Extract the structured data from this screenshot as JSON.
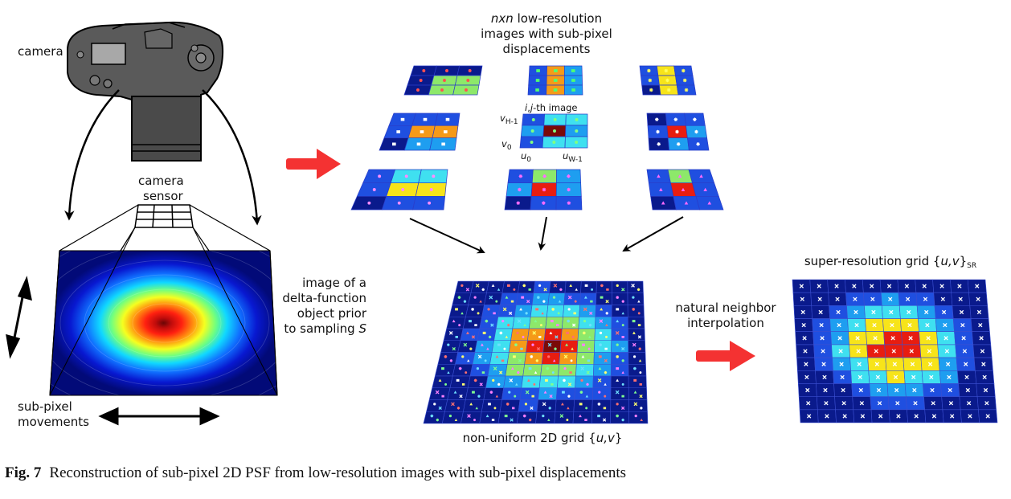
{
  "labels": {
    "camera": "camera",
    "camera_sensor_1": "camera",
    "camera_sensor_2": "sensor",
    "delta_1": "image of a",
    "delta_2": "delta-function",
    "delta_3": "object prior",
    "delta_4": "to sampling",
    "delta_4_var": "S",
    "subpixel_1": "sub-pixel",
    "subpixel_2": "movements",
    "lowres_1_var": "nxn",
    "lowres_1_rest": " low-resolution",
    "lowres_2": "images with sub-pixel",
    "lowres_3": "displacements",
    "ij_i": "i",
    "ij_j": "j",
    "ij_rest": "-th image",
    "v_h1": "v",
    "v_h1_sub": "H-1",
    "v_0": "v",
    "v_0_sub": "0",
    "u_0": "u",
    "u_0_sub": "0",
    "u_w1": "u",
    "u_w1_sub": "W-1",
    "nonuniform_pre": "non-uniform 2D grid {",
    "nonuniform_var": "u,v",
    "nonuniform_post": "}",
    "natural_1": "natural neighbor",
    "natural_2": "interpolation",
    "sr_pre": "super-resolution grid {",
    "sr_var": "u,v",
    "sr_post": "}",
    "sr_sub": "SR"
  },
  "caption": {
    "fig": "Fig. 7",
    "text": "Reconstruction of sub-pixel 2D PSF from low-resolution images with sub-pixel displacements"
  },
  "colors": {
    "navy": "#0a1a8c",
    "blue": "#1f4fe0",
    "azure": "#1e9ef0",
    "cyan": "#3fe0f0",
    "green": "#8de86a",
    "yellow": "#f7e41a",
    "orange": "#f59a18",
    "red": "#e81d10",
    "darkred": "#7a0a08",
    "arrow_red": "#f43232"
  }
}
